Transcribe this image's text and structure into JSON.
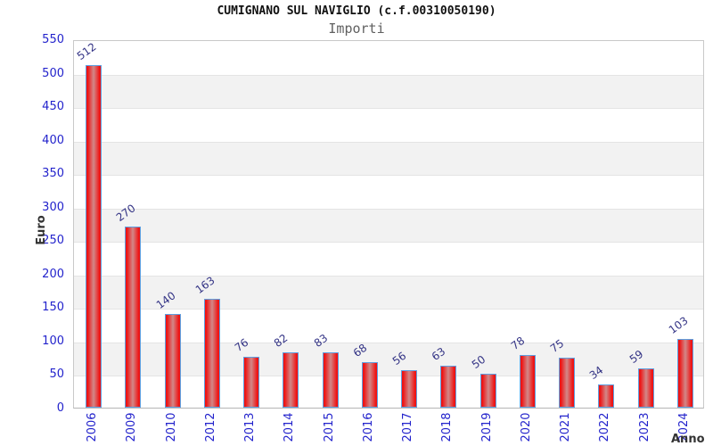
{
  "chart_data": {
    "type": "bar",
    "title": "CUMIGNANO SUL NAVIGLIO (c.f.00310050190)",
    "subtitle": "Importi",
    "xlabel": "Anno",
    "ylabel": "Euro",
    "categories": [
      "2006",
      "2009",
      "2010",
      "2012",
      "2013",
      "2014",
      "2015",
      "2016",
      "2017",
      "2018",
      "2019",
      "2020",
      "2021",
      "2022",
      "2023",
      "2024"
    ],
    "values": [
      512,
      270,
      140,
      163,
      76,
      82,
      83,
      68,
      56,
      63,
      50,
      78,
      75,
      34,
      59,
      103
    ],
    "ylim": [
      0,
      550
    ],
    "ytick_step": 50,
    "grid": "alternating-horizontal-bands",
    "legend": "none",
    "colors": {
      "bar_fill_edge": "#ee1414",
      "bar_fill_mid": "#d28888",
      "bar_border": "#5e9fe0",
      "axis_tick_label": "#2323cc",
      "value_label": "#333385",
      "band_gray": "#f2f2f2",
      "band_white": "#ffffff",
      "title_color": "#111111",
      "subtitle_color": "#616161",
      "axis_title_color": "#333333"
    }
  }
}
